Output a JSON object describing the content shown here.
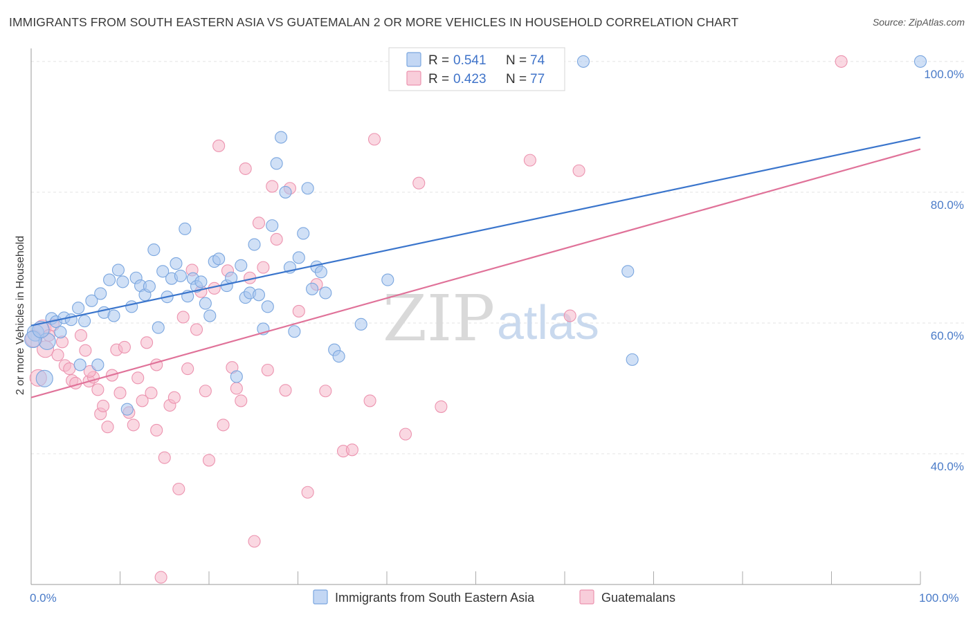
{
  "title": "IMMIGRANTS FROM SOUTH EASTERN ASIA VS GUATEMALAN 2 OR MORE VEHICLES IN HOUSEHOLD CORRELATION CHART",
  "source": "Source: ZipAtlas.com",
  "watermark": {
    "zip": "ZIP",
    "atlas": "atlas"
  },
  "legend_box": {
    "rows": [
      {
        "r_label": "R =",
        "r_value": "0.541",
        "n_label": "N =",
        "n_value": "74",
        "color": "#a9c6ef"
      },
      {
        "r_label": "R =",
        "r_value": "0.423",
        "n_label": "N =",
        "n_value": "77",
        "color": "#f5b8cb"
      }
    ]
  },
  "bottom_legend": [
    {
      "label": "Immigrants from South Eastern Asia",
      "color": "#a9c6ef"
    },
    {
      "label": "Guatemalans",
      "color": "#f5b8cb"
    }
  ],
  "colors": {
    "blue_fill": "#a9c6ef",
    "blue_stroke": "#7aa6df",
    "blue_line": "#3a75cc",
    "pink_fill": "#f5b8cb",
    "pink_stroke": "#ec93af",
    "pink_line": "#e07299",
    "tick_label": "#4a7bc8"
  },
  "chart_data": {
    "type": "scatter",
    "title": "IMMIGRANTS FROM SOUTH EASTERN ASIA VS GUATEMALAN 2 OR MORE VEHICLES IN HOUSEHOLD CORRELATION CHART",
    "xlabel": "",
    "ylabel": "2 or more Vehicles in Household",
    "xlim": [
      0,
      100
    ],
    "ylim": [
      20,
      102
    ],
    "x_tick_labels": [
      "0.0%",
      "100.0%"
    ],
    "y_ticks": [
      {
        "value": 40,
        "label": "40.0%"
      },
      {
        "value": 60,
        "label": "60.0%"
      },
      {
        "value": 80,
        "label": "80.0%"
      },
      {
        "value": 100,
        "label": "100.0%"
      }
    ],
    "grid": "horizontal dashed",
    "legend_position": "top-center",
    "series": [
      {
        "name": "Immigrants from South Eastern Asia",
        "r": 0.541,
        "n": 74,
        "trend": {
          "x": [
            0,
            100
          ],
          "y": [
            59.6,
            88.4
          ]
        },
        "points": [
          [
            0.5,
            58.5
          ],
          [
            1.5,
            51.5
          ],
          [
            1.8,
            57.2
          ],
          [
            2.3,
            60.7
          ],
          [
            2.8,
            60.2
          ],
          [
            3.3,
            58.6
          ],
          [
            3.7,
            60.8
          ],
          [
            4.5,
            60.5
          ],
          [
            5.3,
            62.3
          ],
          [
            5.5,
            53.6
          ],
          [
            6.0,
            60.3
          ],
          [
            6.8,
            63.4
          ],
          [
            7.5,
            53.6
          ],
          [
            7.8,
            64.5
          ],
          [
            8.2,
            61.6
          ],
          [
            8.8,
            66.6
          ],
          [
            9.3,
            61.1
          ],
          [
            9.8,
            68.1
          ],
          [
            10.3,
            66.3
          ],
          [
            10.8,
            46.8
          ],
          [
            11.3,
            62.5
          ],
          [
            11.8,
            66.9
          ],
          [
            12.3,
            65.7
          ],
          [
            12.8,
            64.3
          ],
          [
            13.3,
            65.6
          ],
          [
            13.8,
            71.2
          ],
          [
            14.3,
            59.3
          ],
          [
            14.8,
            67.9
          ],
          [
            15.3,
            64.0
          ],
          [
            15.8,
            66.8
          ],
          [
            16.3,
            69.1
          ],
          [
            16.8,
            67.2
          ],
          [
            17.3,
            74.4
          ],
          [
            17.6,
            64.1
          ],
          [
            18.2,
            66.8
          ],
          [
            18.6,
            65.6
          ],
          [
            19.1,
            66.3
          ],
          [
            19.6,
            63.0
          ],
          [
            20.1,
            61.1
          ],
          [
            20.6,
            69.4
          ],
          [
            21.1,
            69.8
          ],
          [
            22.0,
            65.7
          ],
          [
            22.5,
            66.9
          ],
          [
            23.1,
            51.8
          ],
          [
            23.6,
            68.8
          ],
          [
            24.1,
            63.9
          ],
          [
            24.6,
            64.6
          ],
          [
            25.1,
            72.0
          ],
          [
            25.6,
            64.3
          ],
          [
            26.1,
            59.1
          ],
          [
            26.6,
            62.5
          ],
          [
            27.1,
            74.9
          ],
          [
            27.6,
            84.4
          ],
          [
            28.1,
            88.4
          ],
          [
            28.6,
            80.0
          ],
          [
            29.1,
            68.5
          ],
          [
            29.6,
            58.7
          ],
          [
            30.1,
            70.0
          ],
          [
            30.6,
            73.7
          ],
          [
            31.1,
            80.6
          ],
          [
            31.6,
            65.2
          ],
          [
            32.1,
            68.6
          ],
          [
            32.6,
            67.8
          ],
          [
            33.1,
            64.6
          ],
          [
            34.1,
            55.9
          ],
          [
            34.6,
            54.9
          ],
          [
            37.1,
            59.8
          ],
          [
            40.1,
            66.6
          ],
          [
            62.1,
            100.0
          ],
          [
            67.1,
            67.9
          ],
          [
            67.6,
            54.4
          ],
          [
            100.0,
            100.0
          ],
          [
            0.2,
            57.5
          ],
          [
            1.1,
            59.0
          ]
        ]
      },
      {
        "name": "Guatemalans",
        "r": 0.423,
        "n": 77,
        "trend": {
          "x": [
            0,
            100
          ],
          "y": [
            48.6,
            86.6
          ]
        },
        "points": [
          [
            0.3,
            57.6
          ],
          [
            0.8,
            51.6
          ],
          [
            1.3,
            59.2
          ],
          [
            1.6,
            56.0
          ],
          [
            2.0,
            58.1
          ],
          [
            2.5,
            59.7
          ],
          [
            3.0,
            55.1
          ],
          [
            3.5,
            57.1
          ],
          [
            3.8,
            53.5
          ],
          [
            4.3,
            53.0
          ],
          [
            4.6,
            51.2
          ],
          [
            5.0,
            50.8
          ],
          [
            5.6,
            58.1
          ],
          [
            6.1,
            55.8
          ],
          [
            6.5,
            51.1
          ],
          [
            7.0,
            51.7
          ],
          [
            7.5,
            49.8
          ],
          [
            7.8,
            46.1
          ],
          [
            8.1,
            47.3
          ],
          [
            8.6,
            44.1
          ],
          [
            9.1,
            52.0
          ],
          [
            9.6,
            55.9
          ],
          [
            10.0,
            49.3
          ],
          [
            10.5,
            56.3
          ],
          [
            11.0,
            46.3
          ],
          [
            11.5,
            44.4
          ],
          [
            12.0,
            51.6
          ],
          [
            12.5,
            48.1
          ],
          [
            13.0,
            57.0
          ],
          [
            13.5,
            49.3
          ],
          [
            14.1,
            43.6
          ],
          [
            14.6,
            21.1
          ],
          [
            15.0,
            39.4
          ],
          [
            15.6,
            47.4
          ],
          [
            16.1,
            48.6
          ],
          [
            16.6,
            34.6
          ],
          [
            17.1,
            60.9
          ],
          [
            17.6,
            53.0
          ],
          [
            18.1,
            68.1
          ],
          [
            18.6,
            59.0
          ],
          [
            19.1,
            64.8
          ],
          [
            19.6,
            49.6
          ],
          [
            20.0,
            39.0
          ],
          [
            20.6,
            65.3
          ],
          [
            21.1,
            87.1
          ],
          [
            21.6,
            44.4
          ],
          [
            22.1,
            68.0
          ],
          [
            22.6,
            53.2
          ],
          [
            23.1,
            50.0
          ],
          [
            23.6,
            48.1
          ],
          [
            24.1,
            83.6
          ],
          [
            24.6,
            66.9
          ],
          [
            25.1,
            26.6
          ],
          [
            25.6,
            75.3
          ],
          [
            26.1,
            68.5
          ],
          [
            26.6,
            52.8
          ],
          [
            27.1,
            80.9
          ],
          [
            27.6,
            72.8
          ],
          [
            28.6,
            49.7
          ],
          [
            29.1,
            80.6
          ],
          [
            30.1,
            61.8
          ],
          [
            31.1,
            34.1
          ],
          [
            32.1,
            65.9
          ],
          [
            33.1,
            49.6
          ],
          [
            35.1,
            40.4
          ],
          [
            36.1,
            40.6
          ],
          [
            38.1,
            48.1
          ],
          [
            38.6,
            88.1
          ],
          [
            42.1,
            43.0
          ],
          [
            43.6,
            81.4
          ],
          [
            46.1,
            47.2
          ],
          [
            56.1,
            84.9
          ],
          [
            60.6,
            61.1
          ],
          [
            61.6,
            83.3
          ],
          [
            91.1,
            100.0
          ],
          [
            14.1,
            53.6
          ],
          [
            6.6,
            52.6
          ]
        ]
      }
    ]
  }
}
